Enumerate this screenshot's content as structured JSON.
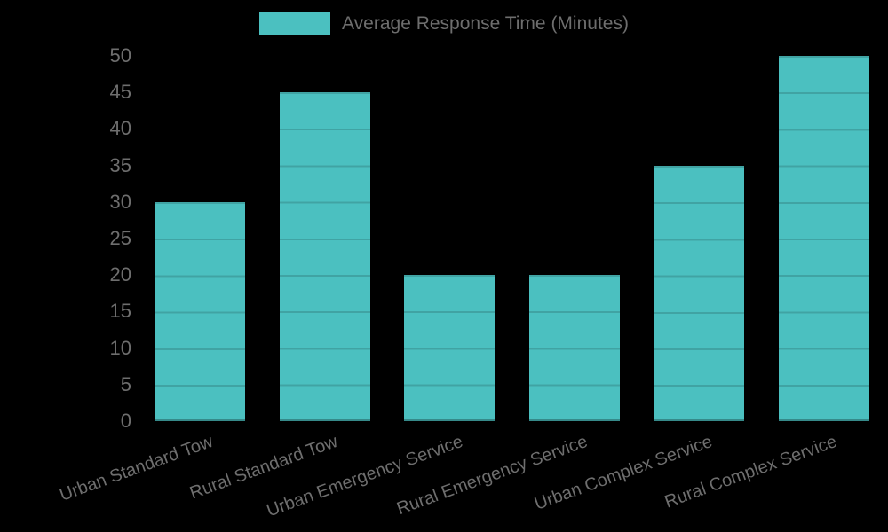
{
  "chart_data": {
    "type": "bar",
    "title": "",
    "xlabel": "",
    "ylabel": "",
    "legend": {
      "position": "top",
      "label": "Average Response Time (Minutes)"
    },
    "categories": [
      "Urban Standard Tow",
      "Rural Standard Tow",
      "Urban Emergency Service",
      "Rural Emergency Service",
      "Urban Complex Service",
      "Rural Complex Service"
    ],
    "values": [
      30,
      45,
      20,
      20,
      35,
      50
    ],
    "ylim": [
      0,
      50
    ],
    "ytick_step": 5,
    "grid": true,
    "colors": {
      "bar": "#4BC0C0",
      "grid_on_bar": "rgba(0,0,0,0.15)",
      "text": "#6E6E6E",
      "background": "#000000"
    }
  }
}
